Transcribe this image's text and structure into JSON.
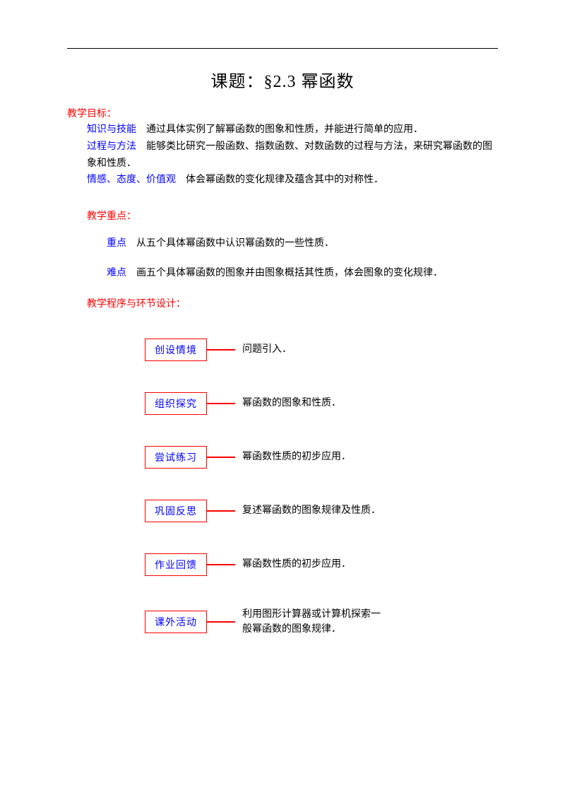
{
  "colors": {
    "red": "#ff0000",
    "blue": "#0000ff",
    "black": "#000000",
    "background": "#ffffff"
  },
  "title": "课题：§2.3 幂函数",
  "objectives": {
    "header": "教学目标：",
    "items": [
      {
        "label": "知识与技能",
        "text": "　通过具体实例了解幂函数的图象和性质，并能进行简单的应用．"
      },
      {
        "label": "过程与方法",
        "text": "　能够类比研究一般函数、指数函数、对数函数的过程与方法，来研究幂函数的图象和性质．"
      },
      {
        "label": "情感、态度、价值观",
        "text": "　体会幂函数的变化规律及蕴含其中的对称性．"
      }
    ]
  },
  "keypoints": {
    "header": "教学重点：",
    "items": [
      {
        "label": "重点",
        "text": "　从五个具体幂函数中认识幂函数的一些性质．"
      },
      {
        "label": "难点",
        "text": "　画五个具体幂函数的图象并由图象概括其性质，体会图象的变化规律．"
      }
    ]
  },
  "flow": {
    "header": "教学程序与环节设计：",
    "boxes": [
      {
        "label": "创设情境",
        "desc": "问题引入．"
      },
      {
        "label": "组织探究",
        "desc": "幂函数的图象和性质．"
      },
      {
        "label": "尝试练习",
        "desc": "幂函数性质的初步应用．"
      },
      {
        "label": "巩固反思",
        "desc": "复述幂函数的图象规律及性质．"
      },
      {
        "label": "作业回馈",
        "desc": "幂函数性质的初步应用．"
      },
      {
        "label": "课外活动",
        "desc": "利用图形计算器或计算机探索一般幂函数的图象规律．",
        "multiline": true,
        "line1": "利用图形计算器或计算机探索一",
        "line2": "般幂函数的图象规律．"
      }
    ]
  }
}
